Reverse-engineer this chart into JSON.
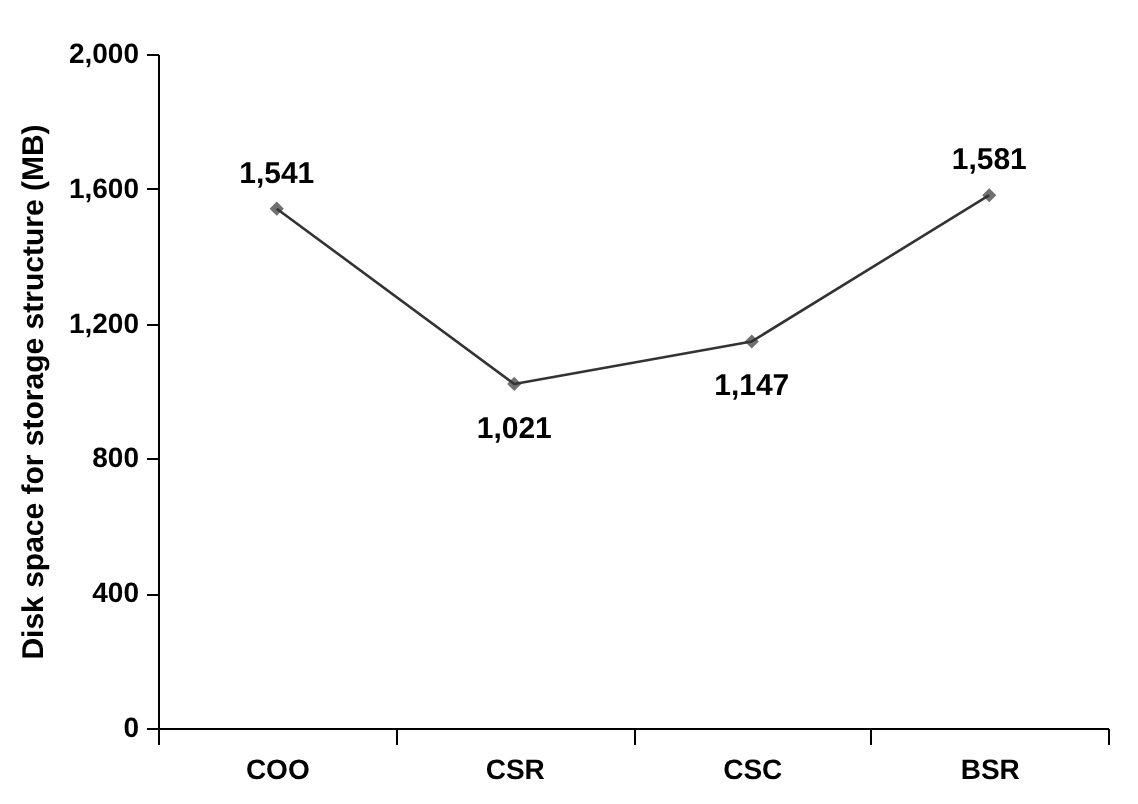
{
  "chart_data": {
    "type": "line",
    "ylabel": "Disk space for storage structure (MB)",
    "categories": [
      "COO",
      "CSR",
      "CSC",
      "BSR"
    ],
    "series": [
      {
        "color": "#333333",
        "values": [
          1541,
          1021,
          1147,
          1581
        ]
      }
    ],
    "ylim": [
      0,
      2000
    ],
    "yticks": [
      {
        "value": 0,
        "label": "0"
      },
      {
        "value": 400,
        "label": "400"
      },
      {
        "value": 800,
        "label": "800"
      },
      {
        "value": 1200,
        "label": "1,200"
      },
      {
        "value": 1600,
        "label": "1,600"
      },
      {
        "value": 2000,
        "label": "2,000"
      }
    ],
    "value_labels": [
      [
        "1,541",
        "1,021",
        "1,147",
        "1,581"
      ]
    ],
    "marker": "diamond",
    "grid": false
  }
}
